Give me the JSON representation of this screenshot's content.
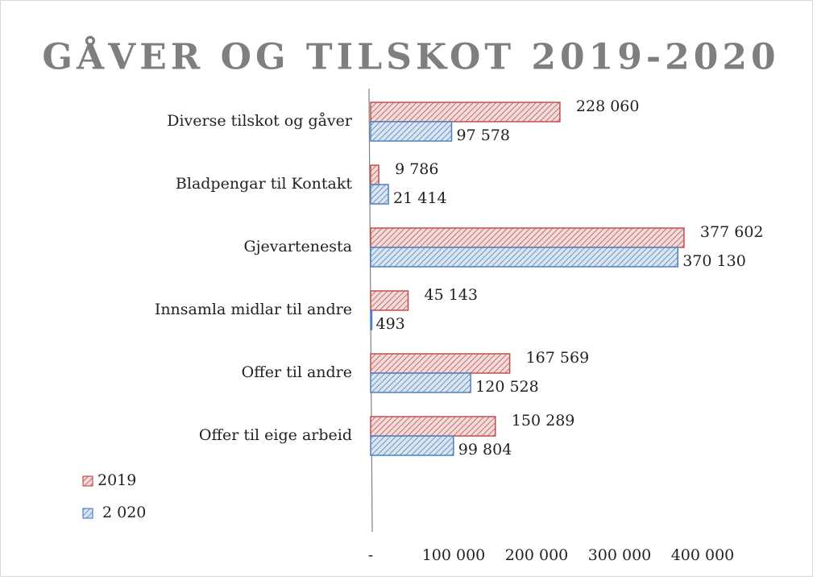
{
  "chart_data": {
    "type": "bar",
    "orientation": "horizontal",
    "title": "GÅVER OG TILSKOT 2019-2020",
    "categories": [
      "Diverse tilskot og gåver",
      "Bladpengar til Kontakt",
      "Gjevartenesta",
      "Innsamla midlar til andre",
      "Offer til andre",
      "Offer til eige arbeid"
    ],
    "series": [
      {
        "name": "2019",
        "color": "#c0504d",
        "values": [
          228060,
          9786,
          377602,
          45143,
          167569,
          150289
        ],
        "value_labels": [
          "228 060",
          "9 786",
          "377 602",
          "45 143",
          "167 569",
          "150 289"
        ]
      },
      {
        "name": "2 020",
        "color": "#4f81bd",
        "values": [
          97578,
          21414,
          370130,
          493,
          120528,
          99804
        ],
        "value_labels": [
          "97 578",
          "21 414",
          "370 130",
          "493",
          "120 528",
          "99 804"
        ]
      }
    ],
    "xlim": [
      0,
      400000
    ],
    "xticks": [
      {
        "value": 0,
        "label": "-"
      },
      {
        "value": 100000,
        "label": "100 000"
      },
      {
        "value": 200000,
        "label": "200 000"
      },
      {
        "value": 300000,
        "label": "300 000"
      },
      {
        "value": 400000,
        "label": "400 000"
      }
    ],
    "legend": "bottom-left"
  }
}
